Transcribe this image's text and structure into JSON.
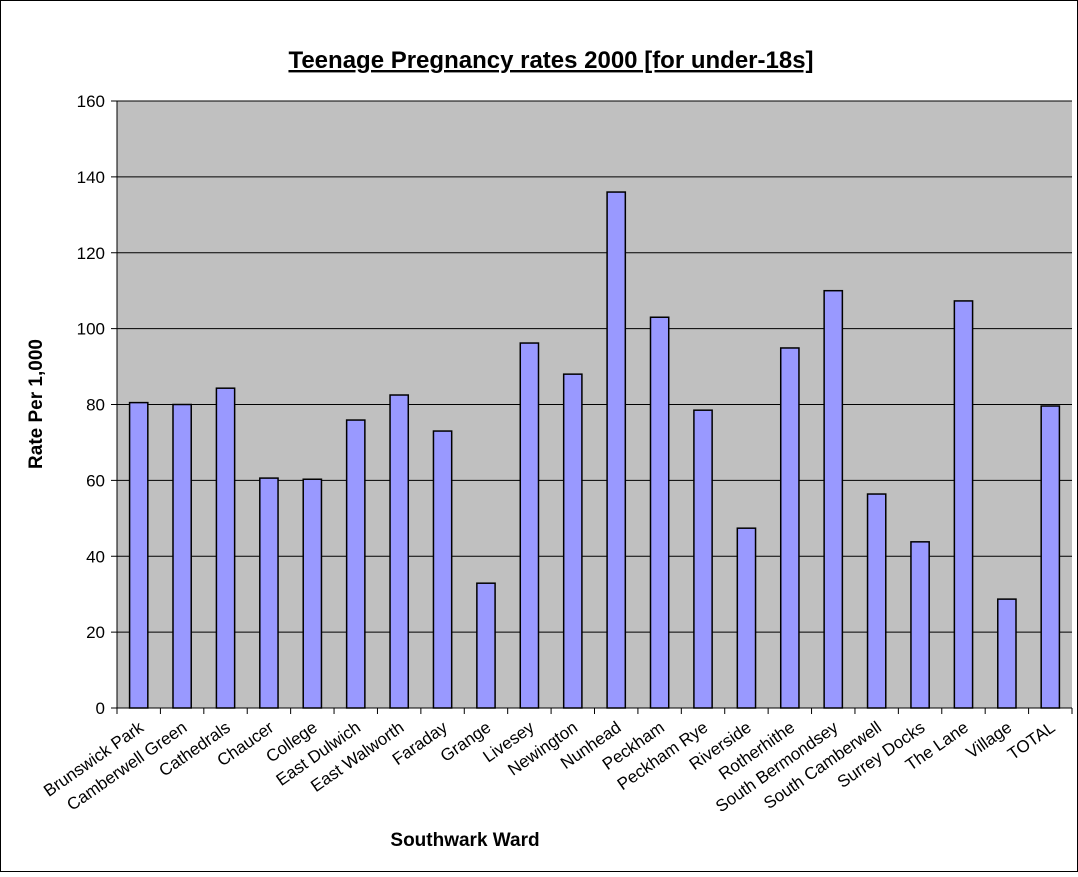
{
  "chart_data": {
    "type": "bar",
    "title": "Teenage Pregnancy rates 2000 [for under-18s]",
    "x_label": "Southwark Ward",
    "y_label": "Rate Per 1,000",
    "categories": [
      "Brunswick Park",
      "Camberwell Green",
      "Cathedrals",
      "Chaucer",
      "College",
      "East Dulwich",
      "East Walworth",
      "Faraday",
      "Grange",
      "Livesey",
      "Newington",
      "Nunhead",
      "Peckham",
      "Peckham Rye",
      "Riverside",
      "Rotherhithe",
      "South Bermondsey",
      "South Camberwell",
      "Surrey Docks",
      "The Lane",
      "Village",
      "TOTAL"
    ],
    "values": [
      80.5,
      80,
      84.3,
      60.6,
      60.3,
      75.9,
      82.5,
      73,
      32.9,
      96.2,
      88,
      136,
      103,
      78.5,
      47.4,
      94.9,
      110,
      56.4,
      43.8,
      107.3,
      28.7,
      79.6
    ],
    "color": "#9999ff",
    "ylim": [
      0,
      160
    ],
    "yticks": [
      0,
      20,
      40,
      60,
      80,
      100,
      120,
      140,
      160
    ],
    "grid": true
  }
}
